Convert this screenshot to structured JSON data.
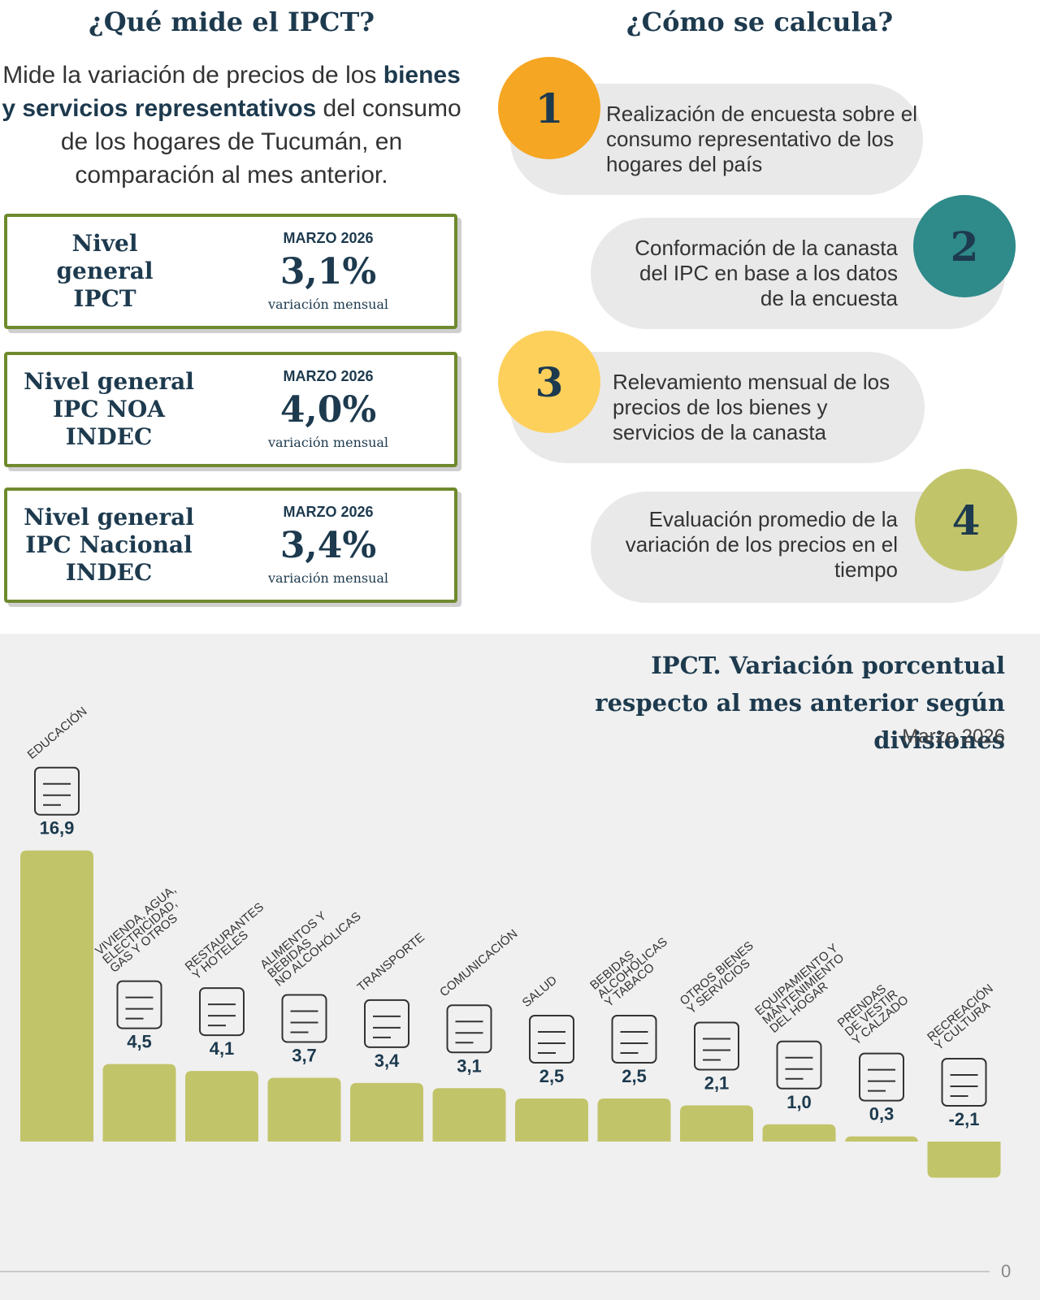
{
  "left": {
    "title": "¿Qué mide el IPCT?",
    "description": [
      "Mide la variación de precios de los ",
      "bienes y servicios representativos",
      " del consumo de los hogares de Tucumán, en comparación al mes anterior."
    ],
    "cards": [
      {
        "label": "Nivel general IPCT",
        "month": "MARZO 2026",
        "value": "3,1%",
        "sub": "variación mensual"
      },
      {
        "label": "Nivel general IPC NOA INDEC",
        "month": "MARZO 2026",
        "value": "4,0%",
        "sub": "variación mensual"
      },
      {
        "label": "Nivel general IPC Nacional INDEC",
        "month": "MARZO 2026",
        "value": "3,4%",
        "sub": "variación mensual"
      }
    ]
  },
  "right": {
    "title": "¿Cómo se calcula?",
    "steps": [
      {
        "number": 1,
        "text": "Realización de encuesta sobre el consumo representativo de los hogares del país"
      },
      {
        "number": 2,
        "text": "Conformación de la canasta del IPC en base a los datos de la encuesta"
      },
      {
        "number": 3,
        "text": "Relevamiento mensual de los precios de los bienes y servicios de la canasta"
      },
      {
        "number": 4,
        "text": "Evaluación promedio de la variación de los precios en el tiempo"
      }
    ]
  },
  "chart_data": {
    "type": "bar",
    "title": "IPCT. Variación porcentual respecto al mes anterior según divisiones",
    "subtitle": "Marzo 2026",
    "color": "#c2c46a",
    "categories": [
      "EDUCACIÓN",
      "VIVIENDA, AGUA,\nELECTRICIDAD,\nGAS Y OTROS",
      "RESTAURANTES\nY HOTELES",
      "ALIMENTOS Y\nBEBIDAS\nNO ALCOHÓLICAS",
      "TRANSPORTE",
      "COMUNICACIÓN",
      "SALUD",
      "BEBIDAS\nALCOHÓLICAS\nY TABACO",
      "OTROS BIENES\nY SERVICIOS",
      "EQUIPAMIENTO Y\nMANTENIMIENTO\nDEL HOGAR",
      "PRENDAS\nDE VESTIR\nY CALZADO",
      "RECREACIÓN\nY CULTURA"
    ],
    "values": [
      16.9,
      4.5,
      4.1,
      3.7,
      3.4,
      3.1,
      2.5,
      2.5,
      2.1,
      1.0,
      0.3,
      -2.1
    ],
    "value_labels": [
      "16,9",
      "4,5",
      "4,1",
      "3,7",
      "3,4",
      "3,1",
      "2,5",
      "2,5",
      "2,1",
      "1,0",
      "0,3",
      "-2,1"
    ]
  },
  "footer": "0"
}
